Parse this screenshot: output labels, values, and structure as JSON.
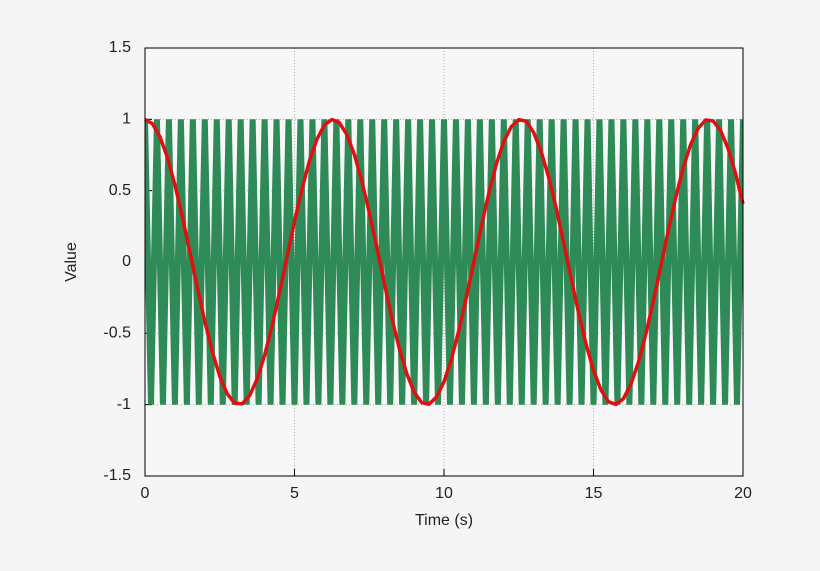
{
  "chart_data": {
    "type": "line",
    "xlabel": "Time (s)",
    "ylabel": "Value",
    "xlim": [
      0,
      20
    ],
    "xticks": [
      0,
      5,
      10,
      15,
      20
    ],
    "ylim": [
      -1.5,
      1.5
    ],
    "yticks": [
      -1.5,
      -1,
      -0.5,
      0,
      0.5,
      1,
      1.5
    ],
    "grid": true,
    "series": [
      {
        "color": "#2e8b57",
        "x": [
          0,
          0.2,
          0.4,
          0.6,
          0.8,
          1,
          1.2,
          1.4,
          1.6,
          1.8,
          2,
          2.2,
          2.4,
          2.6,
          2.8,
          3,
          3.2,
          3.4,
          3.6,
          3.8,
          4,
          4.2,
          4.4,
          4.6,
          4.8,
          5,
          5.2,
          5.4,
          5.6,
          5.8,
          6,
          6.2,
          6.4,
          6.6,
          6.8,
          7,
          7.2,
          7.4,
          7.6,
          7.8,
          8,
          8.2,
          8.4,
          8.6,
          8.8,
          9,
          9.2,
          9.4,
          9.6,
          9.8,
          10,
          10.2,
          10.4,
          10.6,
          10.8,
          11,
          11.2,
          11.4,
          11.6,
          11.8,
          12,
          12.2,
          12.4,
          12.6,
          12.8,
          13,
          13.2,
          13.4,
          13.6,
          13.8,
          14,
          14.2,
          14.4,
          14.6,
          14.8,
          15,
          15.2,
          15.4,
          15.6,
          15.8,
          16,
          16.2,
          16.4,
          16.6,
          16.8,
          17,
          17.2,
          17.4,
          17.6,
          17.8,
          18,
          18.2,
          18.4,
          18.6,
          18.8,
          19,
          19.2,
          19.4,
          19.6,
          19.8,
          20
        ],
        "values": [
          1,
          -1,
          1,
          -1,
          1,
          -1,
          1,
          -1,
          1,
          -1,
          1,
          -1,
          1,
          -1,
          1,
          -1,
          1,
          -1,
          1,
          -1,
          1,
          -1,
          1,
          -1,
          1,
          -1,
          1,
          -1,
          1,
          -1,
          1,
          -1,
          1,
          -1,
          1,
          -1,
          1,
          -1,
          1,
          -1,
          1,
          -1,
          1,
          -1,
          1,
          -1,
          1,
          -1,
          1,
          -1,
          1,
          -1,
          1,
          -1,
          1,
          -1,
          1,
          -1,
          1,
          -1,
          1,
          -1,
          1,
          -1,
          1,
          -1,
          1,
          -1,
          1,
          -1,
          1,
          -1,
          1,
          -1,
          1,
          -1,
          1,
          -1,
          1,
          -1,
          1,
          -1,
          1,
          -1,
          1,
          -1,
          1,
          -1,
          1,
          -1,
          1,
          -1,
          1,
          -1,
          1,
          -1,
          1,
          -1,
          1,
          -1,
          1
        ]
      },
      {
        "color": "#e01010",
        "x": [
          0,
          0.25,
          0.5,
          0.75,
          1,
          1.25,
          1.5,
          1.75,
          2,
          2.25,
          2.5,
          2.75,
          3,
          3.25,
          3.5,
          3.75,
          4,
          4.25,
          4.5,
          4.75,
          5,
          5.25,
          5.5,
          5.75,
          6,
          6.25,
          6.5,
          6.75,
          7,
          7.25,
          7.5,
          7.75,
          8,
          8.25,
          8.5,
          8.75,
          9,
          9.25,
          9.5,
          9.75,
          10,
          10.25,
          10.5,
          10.75,
          11,
          11.25,
          11.5,
          11.75,
          12,
          12.25,
          12.5,
          12.75,
          13,
          13.25,
          13.5,
          13.75,
          14,
          14.25,
          14.5,
          14.75,
          15,
          15.25,
          15.5,
          15.75,
          16,
          16.25,
          16.5,
          16.75,
          17,
          17.25,
          17.5,
          17.75,
          18,
          18.25,
          18.5,
          18.75,
          19,
          19.25,
          19.5,
          19.75,
          20
        ],
        "values": [
          1,
          0.969,
          0.878,
          0.732,
          0.54,
          0.315,
          0.071,
          -0.178,
          -0.416,
          -0.628,
          -0.801,
          -0.924,
          -0.99,
          -0.994,
          -0.936,
          -0.82,
          -0.654,
          -0.446,
          -0.211,
          0.037,
          0.284,
          0.512,
          0.709,
          0.861,
          0.96,
          0.999,
          0.977,
          0.893,
          0.754,
          0.568,
          0.347,
          0.105,
          -0.146,
          -0.388,
          -0.602,
          -0.78,
          -0.911,
          -0.985,
          -0.997,
          -0.946,
          -0.839,
          -0.679,
          -0.476,
          -0.244,
          0.004,
          0.252,
          0.484,
          0.686,
          0.844,
          0.949,
          0.998,
          0.987,
          0.907,
          0.774,
          0.594,
          0.379,
          0.137,
          -0.113,
          -0.356,
          -0.575,
          -0.76,
          -0.897,
          -0.979,
          -0.999,
          -0.958,
          -0.857,
          -0.703,
          -0.505,
          -0.275,
          -0.028,
          0.219,
          0.453,
          0.66,
          0.824,
          0.937,
          0.995,
          0.989,
          0.921,
          0.796,
          0.62,
          0.408
        ]
      }
    ]
  }
}
